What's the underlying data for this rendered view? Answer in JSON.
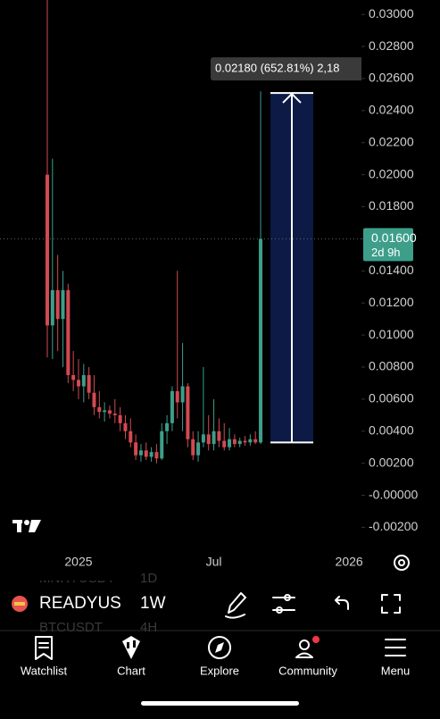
{
  "chart_data": {
    "type": "candlestick",
    "categories": [
      null,
      null,
      null,
      null,
      null,
      null,
      null,
      null,
      null,
      null,
      null,
      null,
      null,
      null,
      null,
      null,
      null,
      null,
      null,
      null,
      null,
      null,
      null,
      null,
      null,
      null,
      null,
      null,
      null,
      null,
      null,
      null,
      null,
      null,
      null,
      null,
      null,
      null,
      null,
      null,
      null,
      null
    ],
    "open": [
      0.02,
      0.0106,
      0.0128,
      0.011,
      0.0128,
      0.0075,
      0.0072,
      0.0068,
      0.0075,
      0.0064,
      0.0055,
      0.0052,
      0.0053,
      0.0051,
      0.005,
      0.0045,
      0.004,
      0.0033,
      0.0025,
      0.0028,
      0.0024,
      0.0027,
      0.0023,
      0.004,
      0.0045,
      0.0065,
      0.0058,
      0.0068,
      0.0035,
      0.0025,
      0.0033,
      0.0038,
      0.0032,
      0.004,
      0.0034,
      0.003,
      0.0035,
      0.0032,
      0.0034,
      0.0033,
      0.0035,
      0.0033
    ],
    "high": [
      0.031,
      0.021,
      0.015,
      0.014,
      0.0132,
      0.009,
      0.0085,
      0.0082,
      0.008,
      0.0075,
      0.0065,
      0.0058,
      0.0056,
      0.006,
      0.0055,
      0.005,
      0.0048,
      0.0038,
      0.0032,
      0.0033,
      0.003,
      0.0032,
      0.0045,
      0.005,
      0.0068,
      0.014,
      0.0095,
      0.007,
      0.004,
      0.004,
      0.008,
      0.005,
      0.006,
      0.0048,
      0.0045,
      0.0042,
      0.0038,
      0.0036,
      0.0037,
      0.0038,
      0.004,
      0.0252
    ],
    "low": [
      0.0086,
      0.0085,
      0.009,
      0.008,
      0.007,
      0.0065,
      0.006,
      0.0058,
      0.006,
      0.005,
      0.0048,
      0.0046,
      0.0048,
      0.0045,
      0.004,
      0.0035,
      0.003,
      0.0022,
      0.0021,
      0.0022,
      0.0021,
      0.002,
      0.0022,
      0.0032,
      0.004,
      0.0048,
      0.004,
      0.003,
      0.0022,
      0.0021,
      0.003,
      0.0028,
      0.0028,
      0.003,
      0.0028,
      0.0028,
      0.003,
      0.003,
      0.0031,
      0.0031,
      0.0032,
      0.0032
    ],
    "close": [
      0.0106,
      0.0128,
      0.011,
      0.0128,
      0.0075,
      0.0072,
      0.0068,
      0.0075,
      0.0064,
      0.0055,
      0.0052,
      0.0053,
      0.0051,
      0.005,
      0.0045,
      0.004,
      0.0033,
      0.0025,
      0.0028,
      0.0024,
      0.0027,
      0.0023,
      0.004,
      0.0045,
      0.0065,
      0.0058,
      0.0068,
      0.0035,
      0.0025,
      0.0033,
      0.0038,
      0.0032,
      0.004,
      0.0034,
      0.003,
      0.0035,
      0.0032,
      0.0034,
      0.0033,
      0.0035,
      0.0033,
      0.016
    ],
    "up_color": "#3d9e8a",
    "down_color": "#d24a52",
    "ylim": [
      -0.0032,
      0.0309
    ],
    "yticks": [
      {
        "value": 0.03,
        "label": "0.03000"
      },
      {
        "value": 0.028,
        "label": "0.02800"
      },
      {
        "value": 0.026,
        "label": "0.02600"
      },
      {
        "value": 0.024,
        "label": "0.02400"
      },
      {
        "value": 0.022,
        "label": "0.02200"
      },
      {
        "value": 0.02,
        "label": "0.02000"
      },
      {
        "value": 0.018,
        "label": "0.01800"
      },
      {
        "value": 0.016,
        "label": "0.01600"
      },
      {
        "value": 0.014,
        "label": "0.01400"
      },
      {
        "value": 0.012,
        "label": "0.01200"
      },
      {
        "value": 0.01,
        "label": "0.01000"
      },
      {
        "value": 0.008,
        "label": "0.00800"
      },
      {
        "value": 0.006,
        "label": "0.00600"
      },
      {
        "value": 0.004,
        "label": "0.00400"
      },
      {
        "value": 0.002,
        "label": "0.00200"
      },
      {
        "value": 0,
        "label": "-0.00000"
      },
      {
        "value": -0.002,
        "label": "-0.00200"
      }
    ],
    "xtick_labels": [
      {
        "at": 6,
        "label": "2025"
      },
      {
        "at": 32,
        "label": "Jul"
      },
      {
        "at": 58,
        "label": "2026"
      }
    ],
    "last_price": {
      "value": 0.016,
      "label": "0.01600",
      "countdown": "2d 9h",
      "color": "#3d9e8a"
    },
    "measure": {
      "from": 0.0033,
      "to": 0.0251,
      "label": "0.02180 (652.81%) 2,18",
      "color": "#0c1a45"
    }
  },
  "toolbar": {
    "symbol": "READYUSDT",
    "interval": "1W",
    "ghost": [
      "MNRYUSDT",
      "1D",
      "BTCUSDT",
      "4H"
    ]
  },
  "nav": [
    "Watchlist",
    "Chart",
    "Explore",
    "Community",
    "Menu"
  ]
}
